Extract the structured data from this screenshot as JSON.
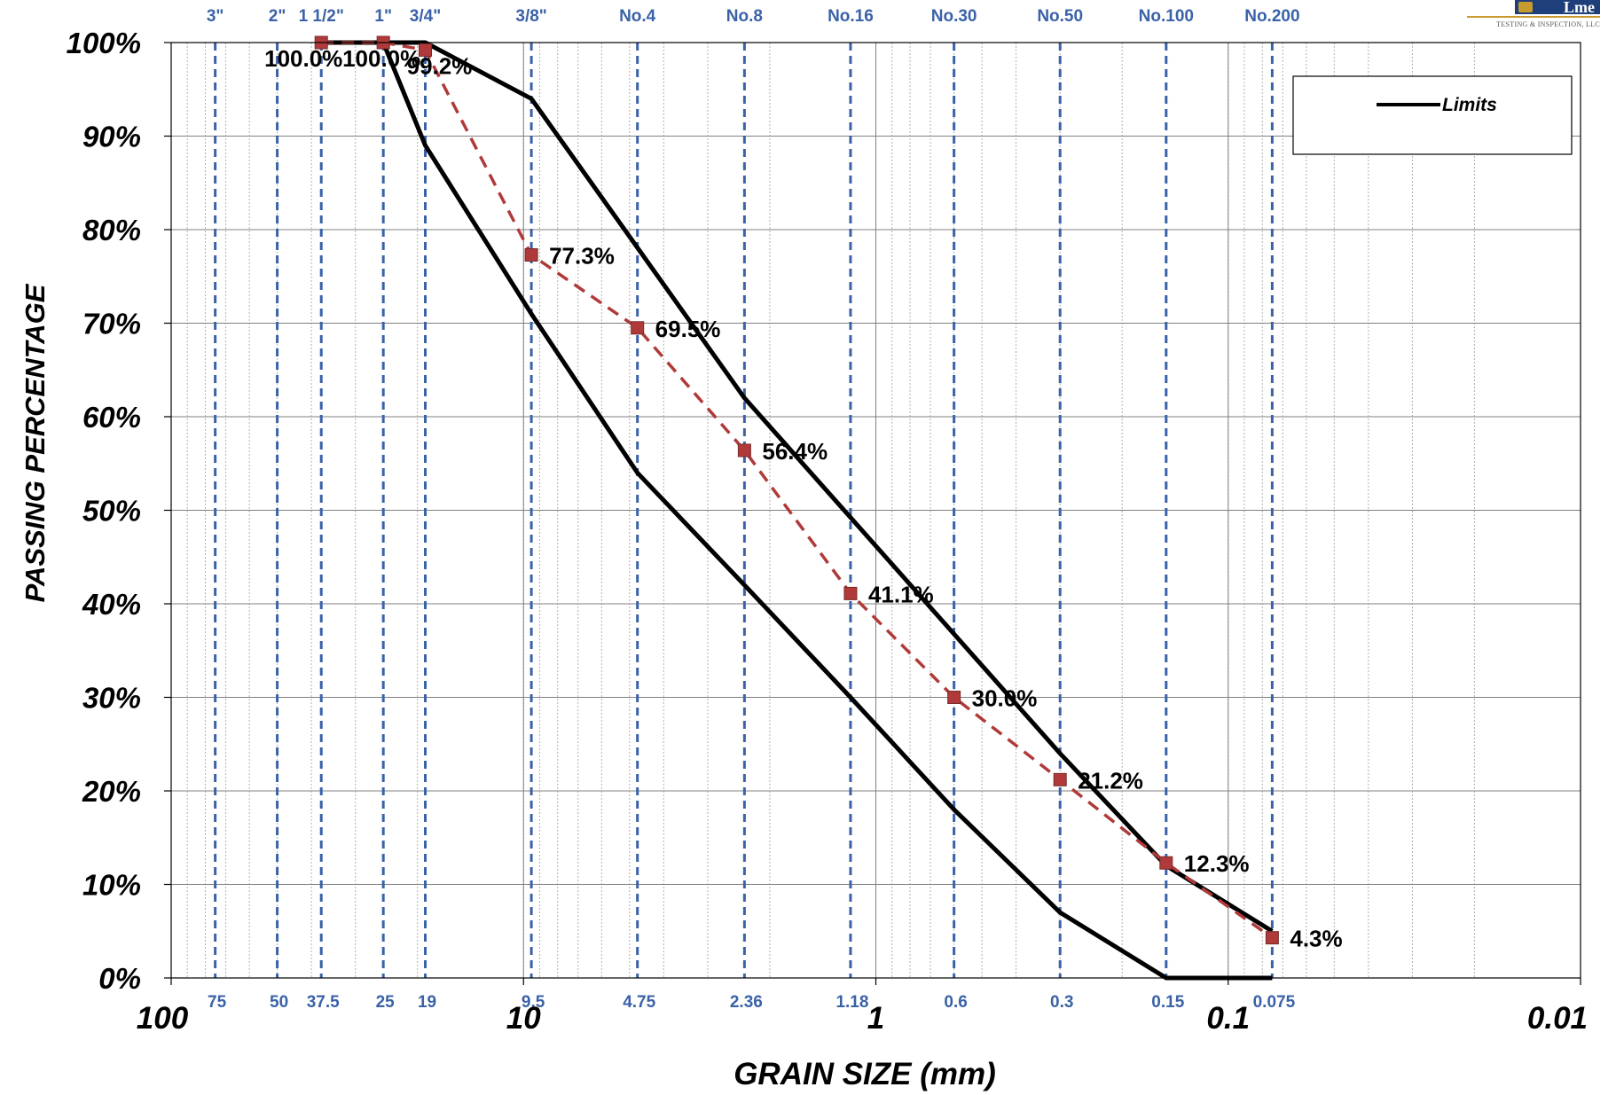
{
  "chart_data": {
    "type": "line",
    "title": "",
    "xlabel": "GRAIN SIZE (mm)",
    "ylabel": "PASSING PERCENTAGE",
    "x_scale": "log-reversed",
    "xlim": [
      100,
      0.01
    ],
    "ylim": [
      0,
      100
    ],
    "x_tick_labels": [
      "100",
      "10",
      "1",
      "0.1",
      "0.01"
    ],
    "x_tick_values": [
      100,
      10,
      1,
      0.1,
      0.01
    ],
    "y_tick_labels": [
      "0%",
      "10%",
      "20%",
      "30%",
      "40%",
      "50%",
      "60%",
      "70%",
      "80%",
      "90%",
      "100%"
    ],
    "y_tick_values": [
      0,
      10,
      20,
      30,
      40,
      50,
      60,
      70,
      80,
      90,
      100
    ],
    "grid": true,
    "legend": {
      "position": "top-right",
      "entries": [
        "Limits"
      ]
    },
    "sieves": [
      {
        "name": "3\"",
        "size_label": "75",
        "size": 75
      },
      {
        "name": "2\"",
        "size_label": "50",
        "size": 50
      },
      {
        "name": "1 1/2\"",
        "size_label": "37.5",
        "size": 37.5
      },
      {
        "name": "1\"",
        "size_label": "25",
        "size": 25
      },
      {
        "name": "3/4\"",
        "size_label": "19",
        "size": 19
      },
      {
        "name": "3/8\"",
        "size_label": "9.5",
        "size": 9.5
      },
      {
        "name": "No.4",
        "size_label": "4.75",
        "size": 4.75
      },
      {
        "name": "No.8",
        "size_label": "2.36",
        "size": 2.36
      },
      {
        "name": "No.16",
        "size_label": "1.18",
        "size": 1.18
      },
      {
        "name": "No.30",
        "size_label": "0.6",
        "size": 0.6
      },
      {
        "name": "No.50",
        "size_label": "0.3",
        "size": 0.3
      },
      {
        "name": "No.100",
        "size_label": "0.15",
        "size": 0.15
      },
      {
        "name": "No.200",
        "size_label": "0.075",
        "size": 0.075
      }
    ],
    "series": [
      {
        "role": "gradation",
        "color": "#b03a3a",
        "marker_color": "#b03a3a",
        "x": [
          37.5,
          25,
          19,
          9.5,
          4.75,
          2.36,
          1.18,
          0.6,
          0.3,
          0.15,
          0.075
        ],
        "y": [
          100.0,
          100.0,
          99.2,
          77.3,
          69.5,
          56.4,
          41.1,
          30.0,
          21.2,
          12.3,
          4.3
        ],
        "labels": [
          "100.0%",
          "100.0%",
          "99.2%",
          "77.3%",
          "69.5%",
          "56.4%",
          "41.1%",
          "30.0%",
          "21.2%",
          "12.3%",
          "4.3%"
        ]
      },
      {
        "name": "Limits",
        "role": "upper-limit",
        "color": "#000000",
        "x": [
          25,
          19,
          9.5,
          2.36,
          0.3,
          0.15,
          0.075
        ],
        "y": [
          100,
          100,
          94,
          62,
          24,
          12,
          5
        ]
      },
      {
        "role": "lower-limit",
        "color": "#000000",
        "x": [
          37.5,
          25,
          19,
          9.5,
          4.75,
          2.36,
          1.18,
          0.6,
          0.3,
          0.15,
          0.075
        ],
        "y": [
          100,
          100,
          89,
          71,
          54,
          42,
          30,
          18,
          7,
          0,
          0
        ]
      }
    ],
    "colors": {
      "axis": "#000000",
      "sieve_line": "#3a62a8",
      "sieve_label": "#3a62a8",
      "grid_major": "#808080",
      "grid_minor": "#b0b0b0"
    }
  },
  "logo": {
    "mark": "Lme",
    "subtitle": "TESTING & INSPECTION, LLC"
  }
}
